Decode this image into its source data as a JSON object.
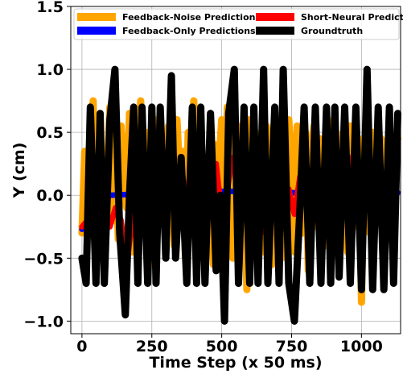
{
  "chart_data": {
    "type": "line",
    "title": "",
    "xlabel": "Time Step (x 50 ms)",
    "ylabel": "Y (cm)",
    "xlim": [
      -40,
      1140
    ],
    "ylim": [
      -1.1,
      1.5
    ],
    "xticks": [
      0,
      250,
      500,
      750,
      1000
    ],
    "yticks": [
      -1.0,
      -0.5,
      0.0,
      0.5,
      1.0,
      1.5
    ],
    "xtick_labels": [
      "0",
      "250",
      "500",
      "750",
      "1000"
    ],
    "ytick_labels": [
      "−1.0",
      "−0.5",
      "0.0",
      "0.5",
      "1.0",
      "1.5"
    ],
    "grid": true,
    "legend_position": "top",
    "series": [
      {
        "name": "Feedback-Noise Predictions",
        "color": "#ffa500",
        "x": [
          0,
          10,
          20,
          30,
          40,
          50,
          60,
          70,
          80,
          90,
          100,
          110,
          120,
          130,
          140,
          150,
          160,
          170,
          180,
          190,
          200,
          210,
          220,
          230,
          240,
          250,
          260,
          270,
          280,
          290,
          300,
          310,
          320,
          330,
          340,
          350,
          360,
          370,
          380,
          390,
          400,
          410,
          420,
          430,
          440,
          450,
          460,
          470,
          480,
          490,
          500,
          510,
          520,
          530,
          540,
          550,
          560,
          570,
          580,
          590,
          600,
          610,
          620,
          630,
          640,
          650,
          660,
          670,
          680,
          690,
          700,
          710,
          720,
          730,
          740,
          750,
          760,
          770,
          780,
          790,
          800,
          810,
          820,
          830,
          840,
          850,
          860,
          870,
          880,
          890,
          900,
          910,
          920,
          930,
          940,
          950,
          960,
          970,
          980,
          990,
          1000,
          1010,
          1020,
          1030,
          1040,
          1050,
          1060,
          1070,
          1080,
          1090,
          1100,
          1110,
          1120,
          1130
        ],
        "y": [
          -0.3,
          0.35,
          -0.2,
          0.45,
          0.75,
          -0.25,
          0.6,
          -0.45,
          0.3,
          0.15,
          0.7,
          -0.2,
          0.4,
          -0.35,
          0.55,
          0.2,
          -0.1,
          0.65,
          -0.45,
          0.45,
          0.3,
          0.75,
          -0.25,
          0.5,
          -0.55,
          0.35,
          0.6,
          -0.2,
          0.45,
          0.1,
          -0.3,
          0.55,
          0.25,
          -0.4,
          0.6,
          0.15,
          0.35,
          -0.5,
          0.5,
          0.2,
          0.75,
          -0.45,
          0.65,
          0.3,
          0.1,
          -0.35,
          0.5,
          -0.55,
          0.4,
          0.25,
          0.6,
          -0.4,
          0.7,
          0.3,
          -0.5,
          0.45,
          -0.2,
          0.55,
          0.35,
          -0.75,
          0.6,
          0.15,
          0.5,
          -0.3,
          0.45,
          -0.45,
          0.55,
          0.35,
          -0.55,
          0.65,
          0.2,
          -0.35,
          0.45,
          -0.5,
          0.6,
          0.25,
          -0.45,
          0.55,
          0.1,
          -0.3,
          0.5,
          -0.6,
          0.35,
          0.55,
          -0.25,
          0.45,
          0.15,
          -0.4,
          0.6,
          0.25,
          -0.2,
          0.5,
          -0.6,
          0.4,
          0.3,
          -0.45,
          0.55,
          0.1,
          -0.25,
          0.45,
          -0.85,
          0.35,
          0.6,
          -0.3,
          0.5,
          0.2,
          -0.2,
          0.45,
          -0.55,
          0.3,
          0.55,
          -0.35,
          0.4,
          0.45
        ],
        "width": 9
      },
      {
        "name": "Feedback-Only Predictions",
        "color": "#0000ff",
        "x": [
          0,
          20,
          40,
          60,
          100,
          200,
          300,
          400,
          500,
          600,
          700,
          800,
          900,
          1000,
          1100,
          1130
        ],
        "y": [
          -0.27,
          -0.2,
          -0.05,
          0.01,
          0.0,
          0.01,
          0.02,
          0.03,
          0.03,
          0.03,
          0.02,
          0.02,
          0.02,
          0.02,
          0.02,
          0.02
        ],
        "width": 7
      },
      {
        "name": "Short-Neural Predictions",
        "color": "#ff0000",
        "x": [
          0,
          20,
          40,
          60,
          80,
          100,
          120,
          140,
          160,
          180,
          200,
          220,
          240,
          260,
          280,
          300,
          320,
          340,
          360,
          380,
          400,
          420,
          440,
          460,
          480,
          500,
          520,
          540,
          560,
          580,
          600,
          620,
          640,
          660,
          680,
          700,
          720,
          740,
          760,
          780,
          800,
          820,
          840,
          860,
          880,
          900,
          920,
          940,
          960,
          980,
          1000,
          1020,
          1040,
          1060,
          1080,
          1100,
          1120
        ],
        "y": [
          -0.25,
          -0.2,
          -0.12,
          -0.18,
          -0.05,
          -0.25,
          -0.1,
          -0.2,
          -0.55,
          -0.2,
          0.0,
          0.15,
          0.05,
          -0.05,
          0.1,
          0.2,
          -0.05,
          0.1,
          0.15,
          -0.1,
          0.3,
          0.05,
          -0.1,
          0.1,
          0.25,
          -0.15,
          0.05,
          0.3,
          0.1,
          -0.05,
          0.2,
          0.35,
          -0.3,
          0.0,
          0.15,
          0.3,
          -0.05,
          0.05,
          -0.15,
          0.15,
          0.2,
          0.0,
          -0.2,
          0.2,
          0.05,
          -0.1,
          0.25,
          0.1,
          0.3,
          -0.05,
          0.05,
          0.2,
          0.1,
          -0.15,
          0.05,
          0.15,
          0.15
        ],
        "width": 7
      },
      {
        "name": "Groundtruth",
        "color": "#000000",
        "x": [
          0,
          15,
          30,
          50,
          65,
          80,
          100,
          118,
          135,
          155,
          170,
          185,
          200,
          215,
          235,
          250,
          265,
          280,
          300,
          320,
          335,
          355,
          375,
          395,
          410,
          425,
          440,
          460,
          480,
          495,
          510,
          525,
          545,
          560,
          580,
          600,
          615,
          630,
          650,
          665,
          690,
          705,
          720,
          740,
          760,
          780,
          795,
          815,
          835,
          855,
          875,
          890,
          905,
          920,
          940,
          960,
          980,
          1000,
          1020,
          1040,
          1060,
          1080,
          1100,
          1115,
          1130
        ],
        "y": [
          -0.5,
          -0.7,
          0.7,
          -0.7,
          0.65,
          -0.7,
          0.6,
          1.0,
          -0.3,
          -0.95,
          0.0,
          0.7,
          -0.7,
          0.7,
          -0.7,
          0.7,
          -0.7,
          0.7,
          -0.5,
          0.95,
          -0.5,
          0.3,
          -0.7,
          0.7,
          -0.7,
          0.7,
          -0.7,
          0.65,
          -0.6,
          0.0,
          -1.0,
          0.65,
          1.0,
          -0.7,
          0.7,
          -0.7,
          0.7,
          -0.7,
          1.0,
          -0.7,
          0.7,
          -0.7,
          1.0,
          -0.7,
          -1.0,
          -0.1,
          0.7,
          -0.7,
          0.7,
          -0.7,
          0.7,
          -0.7,
          0.7,
          -0.65,
          0.7,
          -0.7,
          0.7,
          -0.75,
          1.0,
          -0.75,
          0.7,
          -0.75,
          0.7,
          -0.7,
          0.65
        ],
        "width": 9
      }
    ]
  }
}
